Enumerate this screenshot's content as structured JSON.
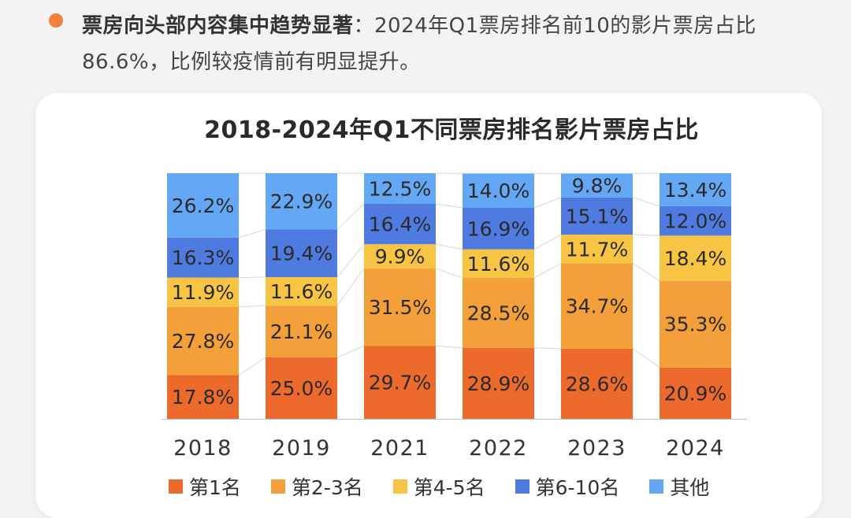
{
  "intro": {
    "lead": "票房向头部内容集中趋势显著",
    "text": "：2024年Q1票房排名前10的影片票房占比86.6%，比例较疫情前有明显提升。"
  },
  "colors": {
    "bullet": "#f0803a",
    "rank1": "#ec6a2b",
    "rank2_3": "#f3a03a",
    "rank4_5": "#f7c443",
    "rank6_10": "#4f7be1",
    "other": "#64a8f5"
  },
  "chart_data": {
    "type": "bar",
    "stacked": true,
    "title": "2018-2024年Q1不同票房排名影片票房占比",
    "categories": [
      "2018",
      "2019",
      "2021",
      "2022",
      "2023",
      "2024"
    ],
    "series": [
      {
        "name": "第1名",
        "values": [
          17.8,
          25.0,
          29.7,
          28.9,
          28.6,
          20.9
        ],
        "color": "#ec6a2b"
      },
      {
        "name": "第2-3名",
        "values": [
          27.8,
          21.1,
          31.5,
          28.5,
          34.7,
          35.3
        ],
        "color": "#f3a03a"
      },
      {
        "name": "第4-5名",
        "values": [
          11.9,
          11.6,
          9.9,
          11.6,
          11.7,
          18.4
        ],
        "color": "#f7c443"
      },
      {
        "name": "第6-10名",
        "values": [
          16.3,
          19.4,
          16.4,
          16.9,
          15.1,
          12.0
        ],
        "color": "#4f7be1"
      },
      {
        "name": "其他",
        "values": [
          26.2,
          22.9,
          12.5,
          14.0,
          9.8,
          13.4
        ],
        "color": "#64a8f5"
      }
    ],
    "value_suffix": "%",
    "ylim": [
      0,
      100
    ],
    "legend_position": "bottom",
    "connector_lines": true
  }
}
